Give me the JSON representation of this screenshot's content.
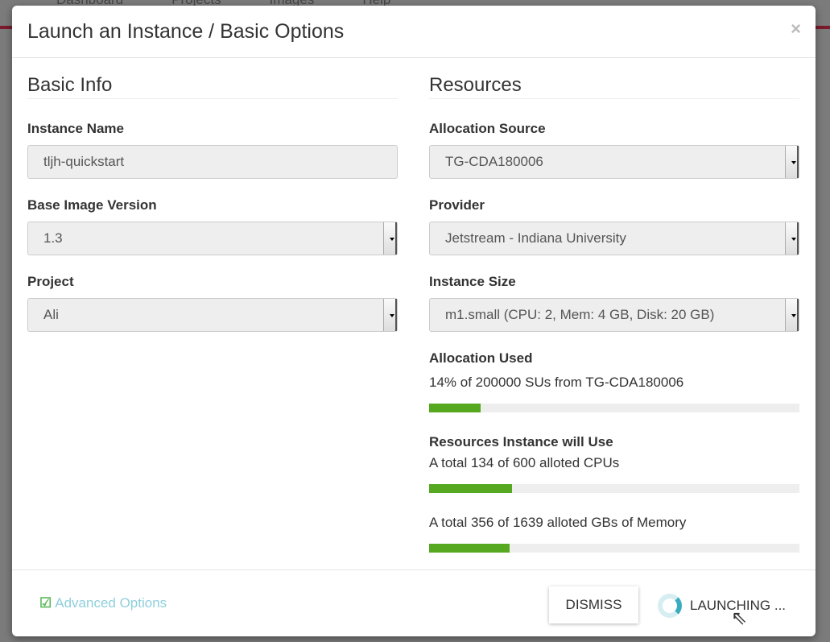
{
  "background_nav": [
    "Dashboard",
    "Projects",
    "Images",
    "Help"
  ],
  "modal": {
    "title": "Launch an Instance / Basic Options",
    "close": "×"
  },
  "basic_info": {
    "heading": "Basic Info",
    "instance_name": {
      "label": "Instance Name",
      "value": "tljh-quickstart"
    },
    "base_image_version": {
      "label": "Base Image Version",
      "value": "1.3"
    },
    "project": {
      "label": "Project",
      "value": "Ali"
    }
  },
  "resources": {
    "heading": "Resources",
    "allocation_source": {
      "label": "Allocation Source",
      "value": "TG-CDA180006"
    },
    "provider": {
      "label": "Provider",
      "value": "Jetstream - Indiana University"
    },
    "instance_size": {
      "label": "Instance Size",
      "value": "m1.small (CPU: 2, Mem: 4 GB, Disk: 20 GB)"
    },
    "allocation_used": {
      "label": "Allocation Used",
      "text": "14% of 200000 SUs from TG-CDA180006",
      "percent": 14
    },
    "will_use": {
      "label": "Resources Instance will Use",
      "cpus": {
        "text": "A total 134 of 600 alloted CPUs",
        "percent": 22.3
      },
      "memory": {
        "text": "A total 356 of 1639 alloted GBs of Memory",
        "percent": 21.7
      }
    },
    "bar_color": "#56a821"
  },
  "footer": {
    "advanced": "Advanced Options",
    "dismiss": "DISMISS",
    "launching": "LAUNCHING ..."
  }
}
